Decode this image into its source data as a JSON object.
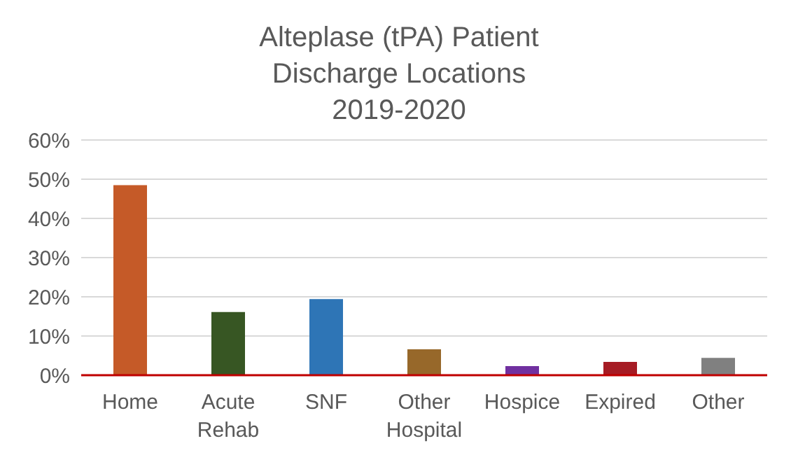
{
  "chart_data": {
    "type": "bar",
    "title": "Alteplase (tPA) Patient\nDischarge Locations\n2019-2020",
    "categories": [
      "Home",
      "Acute Rehab",
      "SNF",
      "Other Hospital",
      "Hospice",
      "Expired",
      "Other"
    ],
    "values": [
      48.5,
      16.1,
      19.4,
      6.6,
      2.3,
      3.4,
      4.4
    ],
    "colors": [
      "#c55a28",
      "#375623",
      "#2e75b6",
      "#97682a",
      "#7030a0",
      "#a61c24",
      "#808080"
    ],
    "ylim": [
      0,
      60
    ],
    "yticks": [
      {
        "value": 0,
        "label": "0%"
      },
      {
        "value": 10,
        "label": "10%"
      },
      {
        "value": 20,
        "label": "20%"
      },
      {
        "value": 30,
        "label": "30%"
      },
      {
        "value": 40,
        "label": "40%"
      },
      {
        "value": 50,
        "label": "50%"
      },
      {
        "value": 60,
        "label": "60%"
      }
    ],
    "grid": "y"
  }
}
